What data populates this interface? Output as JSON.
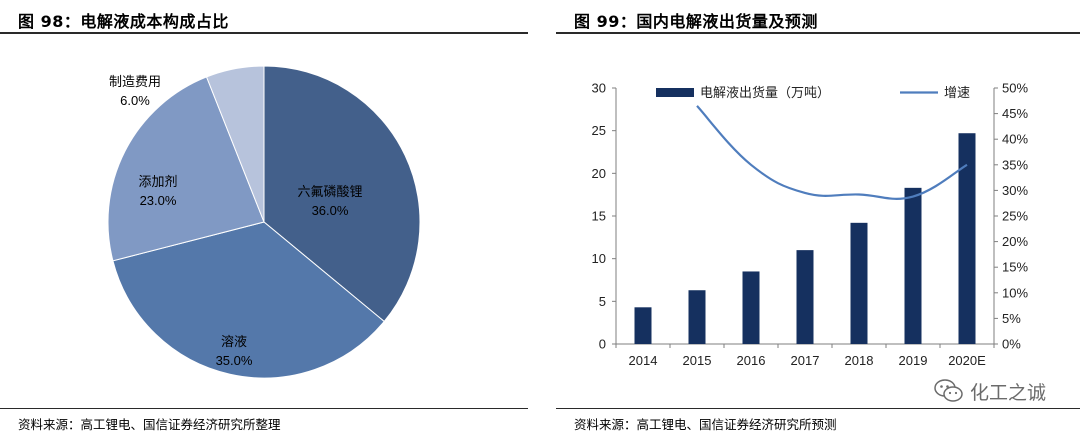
{
  "left": {
    "title": "图 98：电解液成本构成占比",
    "source": "资料来源：高工锂电、国信证券经济研究所整理"
  },
  "right": {
    "title": "图 99：国内电解液出货量及预测",
    "source": "资料来源：高工锂电、国信证券经济研究所预测"
  },
  "watermark": {
    "text": "化工之诚",
    "icon": "wechat-icon"
  },
  "chart_data": [
    {
      "type": "pie",
      "slices": [
        {
          "label": "六氟磷酸锂",
          "value": 36.0,
          "display": "36.0%",
          "color": "#43608b"
        },
        {
          "label": "溶液",
          "value": 35.0,
          "display": "35.0%",
          "color": "#5478aa"
        },
        {
          "label": "添加剂",
          "value": 23.0,
          "display": "23.0%",
          "color": "#8099c4"
        },
        {
          "label": "制造费用",
          "value": 6.0,
          "display": "6.0%",
          "color": "#b7c3dc"
        }
      ]
    },
    {
      "type": "bar",
      "categories": [
        "2014",
        "2015",
        "2016",
        "2017",
        "2018",
        "2019",
        "2020E"
      ],
      "series": [
        {
          "name": "电解液出货量（万吨）",
          "type": "bar",
          "axis": "left",
          "values": [
            4.3,
            6.3,
            8.5,
            11.0,
            14.2,
            18.3,
            24.7
          ],
          "color": "#15305f"
        },
        {
          "name": "增速",
          "type": "line",
          "axis": "right",
          "values": [
            null,
            46.5,
            35.0,
            29.5,
            29.2,
            28.8,
            35.0
          ],
          "color": "#4f7dbd"
        }
      ],
      "ylim": [
        0,
        30
      ],
      "yticks": [
        "0",
        "5",
        "10",
        "15",
        "20",
        "25",
        "30"
      ],
      "y2lim": [
        0,
        50
      ],
      "y2ticks": [
        "0%",
        "5%",
        "10%",
        "15%",
        "20%",
        "25%",
        "30%",
        "35%",
        "40%",
        "45%",
        "50%"
      ],
      "legend": "top"
    }
  ]
}
